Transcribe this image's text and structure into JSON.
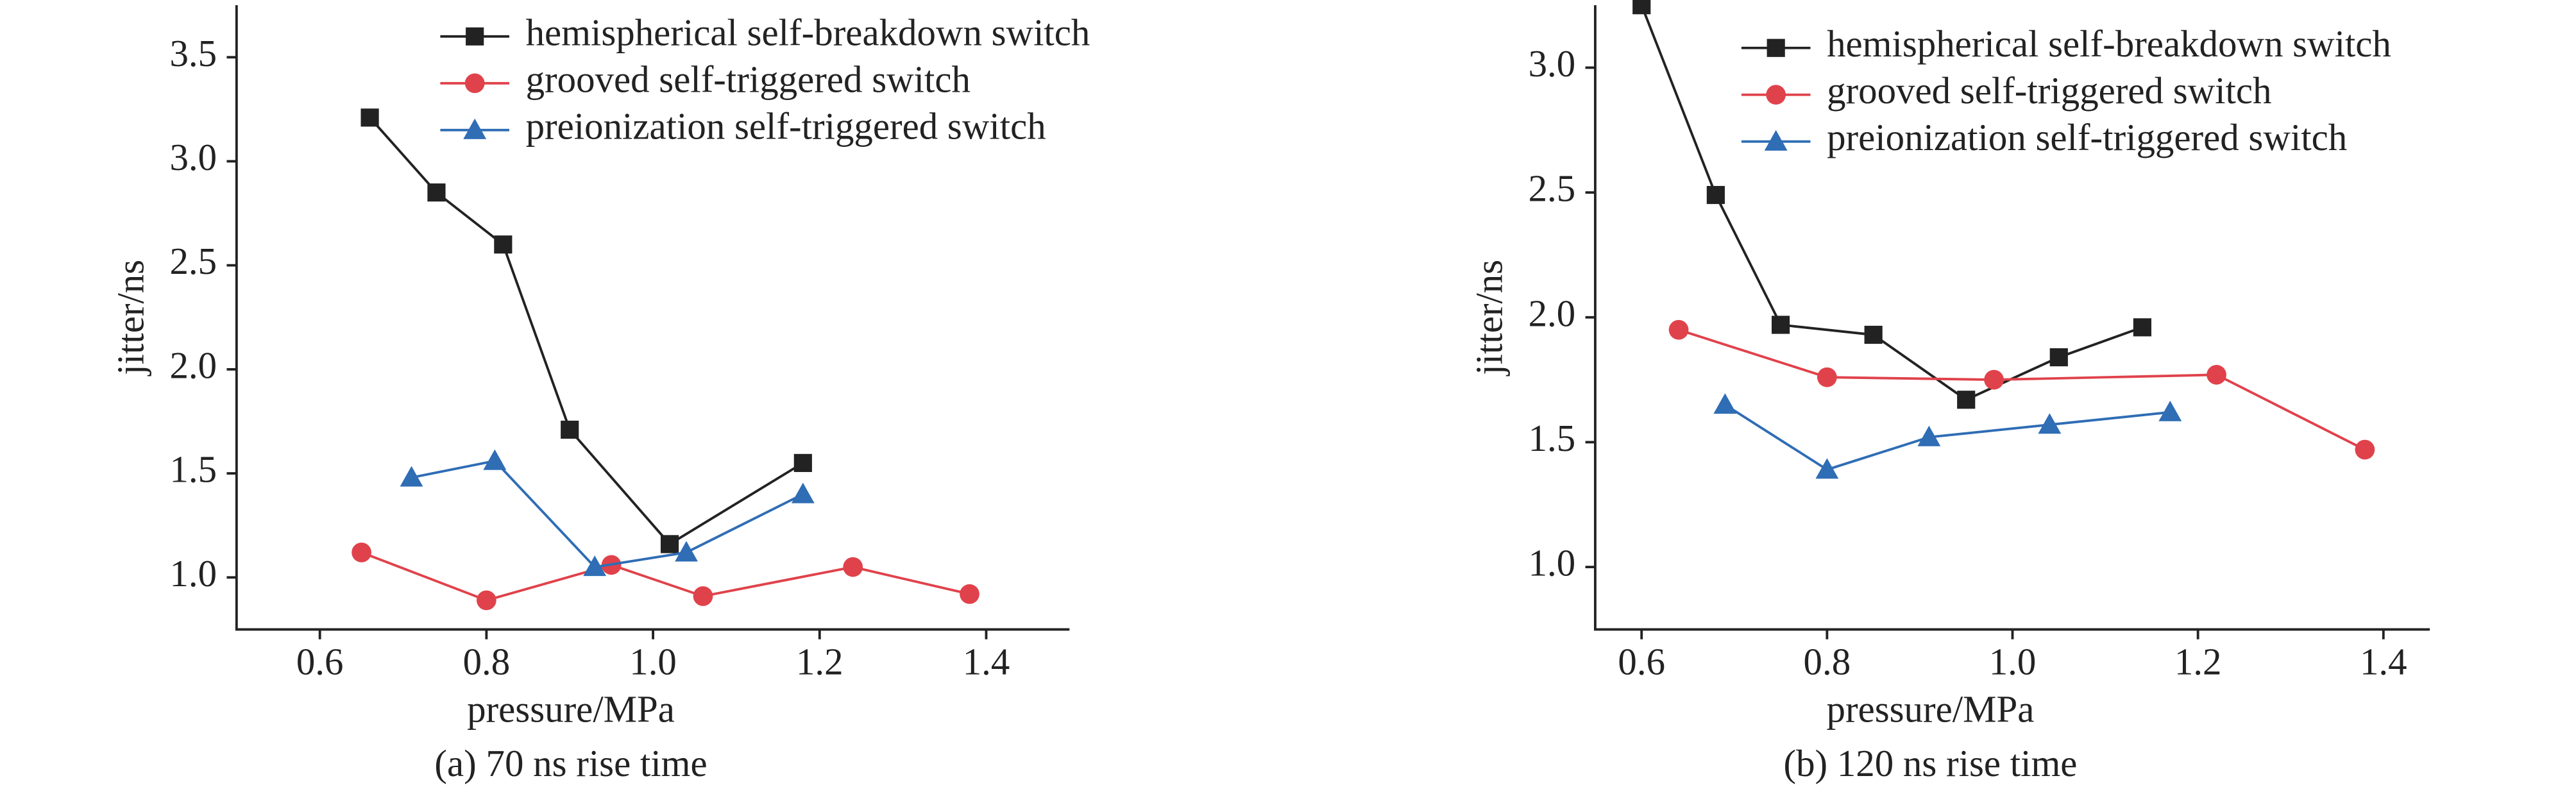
{
  "chart_data": [
    {
      "type": "line",
      "caption": "(a) 70 ns rise time",
      "x_label": "pressure/MPa",
      "y_label": "jitter/ns",
      "xlim": [
        0.5,
        1.5
      ],
      "xticks": [
        0.6,
        0.8,
        {
          "value": 1.0,
          "label": "1.0"
        },
        1.2,
        1.4
      ],
      "ylim": [
        0.75,
        3.75
      ],
      "yticks": [
        {
          "value": 1.0,
          "label": "1.0"
        },
        1.5,
        {
          "value": 2.0,
          "label": "2.0"
        },
        2.5,
        {
          "value": 3.0,
          "label": "3.0"
        },
        3.5
      ],
      "legend": "upper center",
      "series": [
        {
          "name": "hemispherical self-breakdown switch",
          "color": "#222222",
          "marker": "square",
          "x": [
            0.66,
            0.74,
            0.82,
            0.9,
            1.02,
            1.18
          ],
          "values": [
            3.21,
            2.85,
            2.6,
            1.71,
            1.16,
            1.55
          ]
        },
        {
          "name": "grooved self-triggered switch",
          "color": "#e0424b",
          "marker": "circle",
          "x": [
            0.65,
            0.8,
            0.95,
            1.06,
            1.24,
            1.38
          ],
          "values": [
            1.12,
            0.89,
            1.06,
            0.91,
            1.05,
            0.92
          ]
        },
        {
          "name": "preionization self-triggered switch",
          "color": "#2f6db5",
          "marker": "triangle",
          "x": [
            0.71,
            0.81,
            0.93,
            1.04,
            1.18
          ],
          "values": [
            1.48,
            1.56,
            1.05,
            1.12,
            1.4
          ]
        }
      ]
    },
    {
      "type": "line",
      "caption": "(b) 120 ns rise time",
      "x_label": "pressure/MPa",
      "y_label": "jitter/ns",
      "xlim": [
        0.55,
        1.45
      ],
      "xticks": [
        0.6,
        0.8,
        {
          "value": 1.0,
          "label": "1.0"
        },
        1.2,
        1.4
      ],
      "ylim": [
        0.75,
        3.25
      ],
      "yticks": [
        {
          "value": 1.0,
          "label": "1.0"
        },
        1.5,
        {
          "value": 2.0,
          "label": "2.0"
        },
        2.5,
        {
          "value": 3.0,
          "label": "3.0"
        }
      ],
      "legend": "upper center",
      "series": [
        {
          "name": "hemispherical self-breakdown switch",
          "color": "#222222",
          "marker": "square",
          "x": [
            0.6,
            0.68,
            0.75,
            0.85,
            0.95,
            1.05,
            1.14
          ],
          "values": [
            3.25,
            2.49,
            1.97,
            1.93,
            1.67,
            1.84,
            1.96
          ]
        },
        {
          "name": "grooved self-triggered switch",
          "color": "#e0424b",
          "marker": "circle",
          "x": [
            0.64,
            0.8,
            0.98,
            1.22,
            1.38
          ],
          "values": [
            1.95,
            1.76,
            1.75,
            1.77,
            1.47
          ]
        },
        {
          "name": "preionization self-triggered switch",
          "color": "#2f6db5",
          "marker": "triangle",
          "x": [
            0.69,
            0.8,
            0.91,
            1.04,
            1.17
          ],
          "values": [
            1.65,
            1.39,
            1.52,
            1.57,
            1.62
          ]
        }
      ]
    }
  ]
}
